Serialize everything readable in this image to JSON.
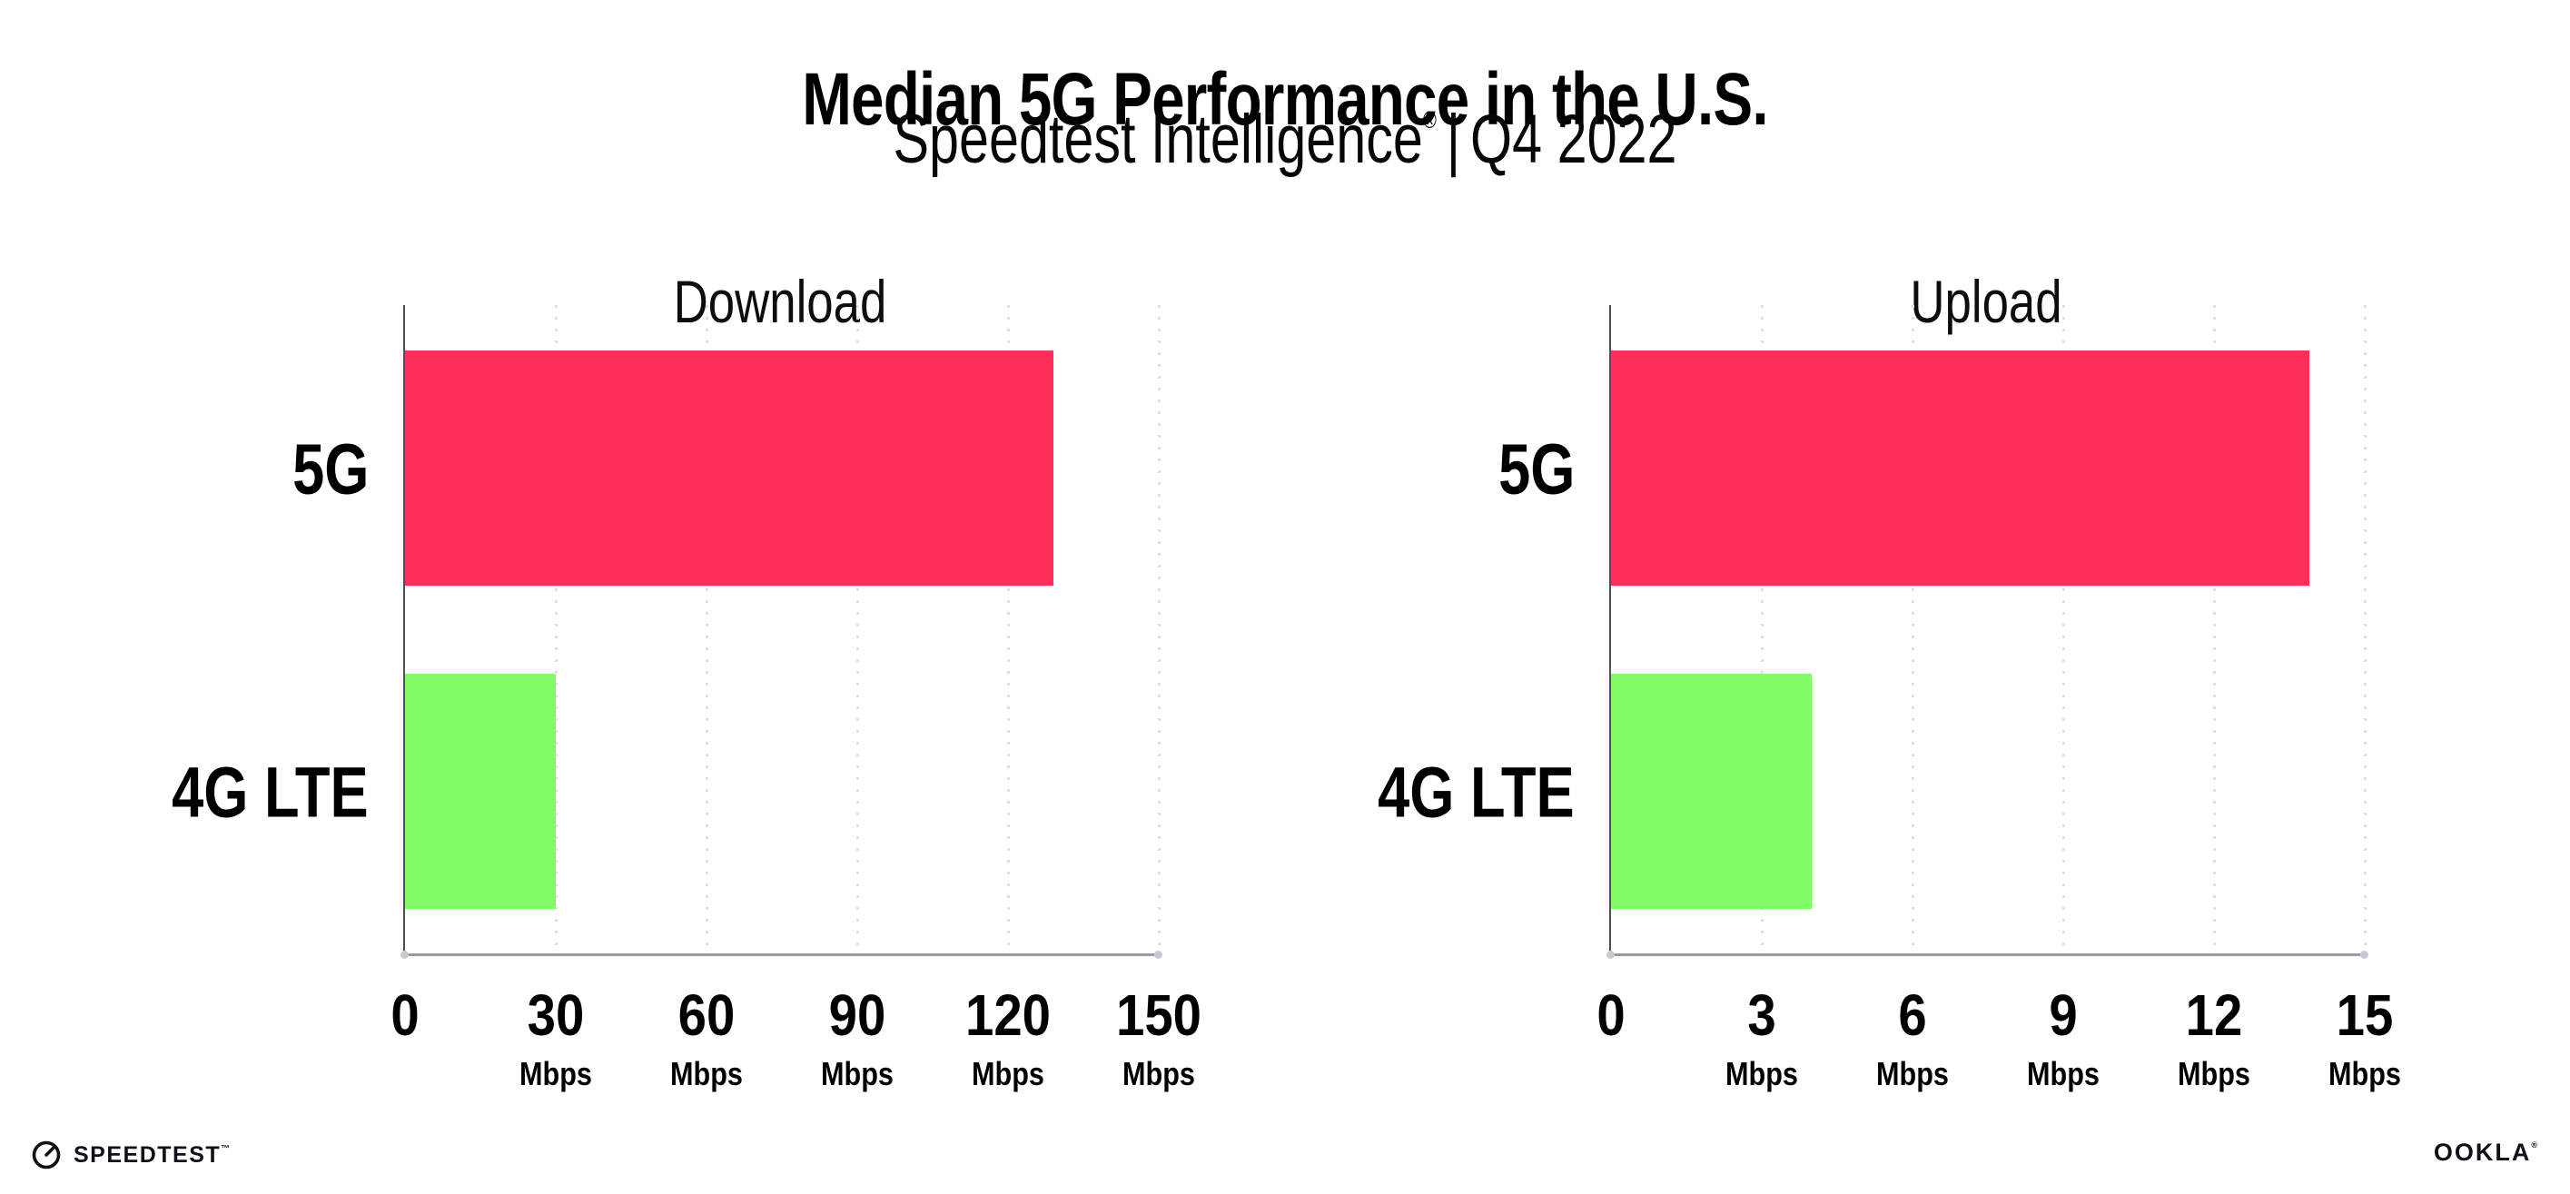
{
  "header": {
    "title": "Median 5G Performance in the U.S.",
    "subtitle_brand": "Speedtest Intelligence",
    "subtitle_reg": "®",
    "subtitle_rest": "Q4 2022",
    "subtitle_separator": "|"
  },
  "colors": {
    "bar_5g": "#FE2E59",
    "bar_4g_lte": "#80FC66",
    "gridline": "#DFDFE9",
    "axis_y": "#4F4F56",
    "axis_x": "#9A9AA0",
    "text": "#000000"
  },
  "chart_data": [
    {
      "type": "bar",
      "title": "Download",
      "orientation": "horizontal",
      "categories": [
        "5G",
        "4G LTE"
      ],
      "values": [
        129,
        30
      ],
      "unit": "Mbps",
      "xlim": [
        0,
        150
      ],
      "xticks": [
        0,
        30,
        60,
        90,
        120,
        150
      ],
      "grid": "vertical dotted",
      "legend": "none"
    },
    {
      "type": "bar",
      "title": "Upload",
      "orientation": "horizontal",
      "categories": [
        "5G",
        "4G LTE"
      ],
      "values": [
        13.9,
        4
      ],
      "unit": "Mbps",
      "xlim": [
        0,
        15
      ],
      "xticks": [
        0,
        3,
        6,
        9,
        12,
        15
      ],
      "grid": "vertical dotted",
      "legend": "none"
    }
  ],
  "footer": {
    "speedtest_label": "SPEEDTEST",
    "speedtest_tm": "™",
    "ookla_label": "OOKLA",
    "ookla_reg": "®"
  }
}
